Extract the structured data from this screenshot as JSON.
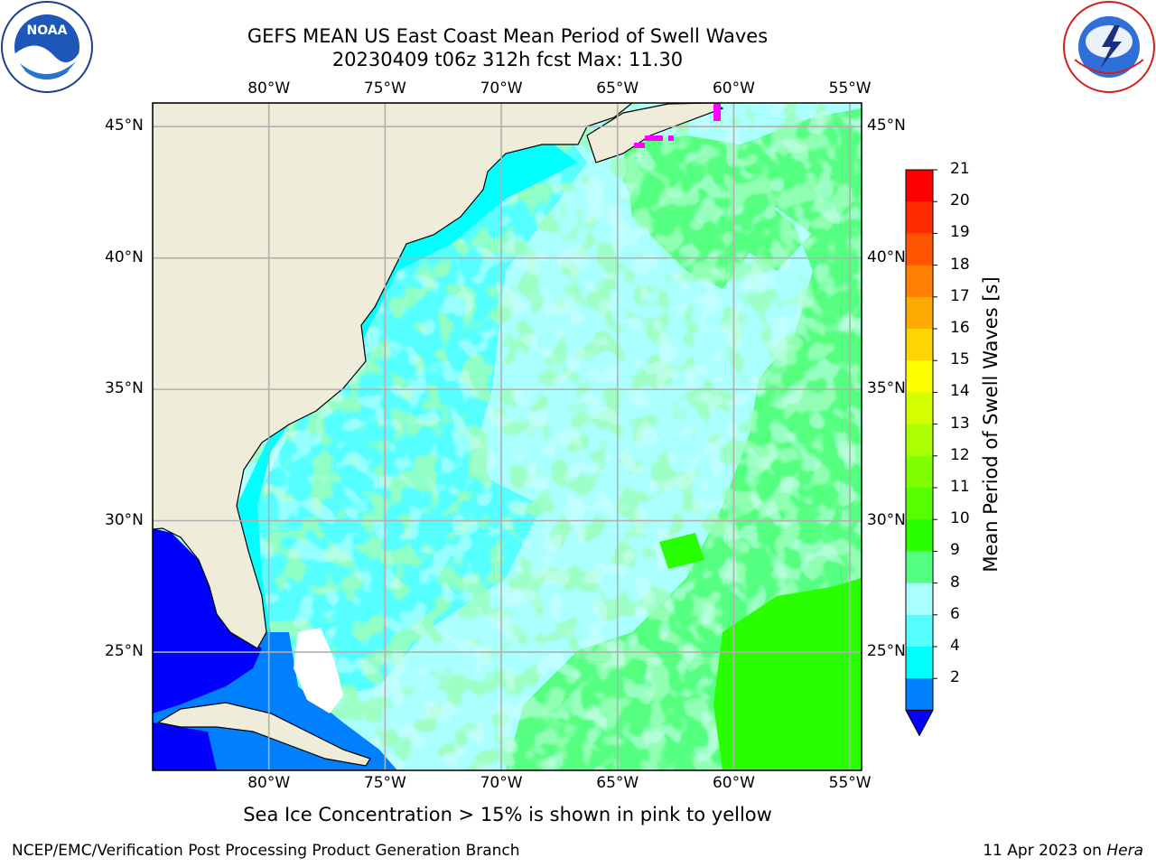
{
  "header": {
    "title": "GEFS MEAN US East Coast Mean Period of Swell Waves",
    "subtitle": "20230409 t06z 312h fcst   Max: 11.30"
  },
  "map": {
    "lon_labels": [
      "80°W",
      "75°W",
      "70°W",
      "65°W",
      "60°W",
      "55°W"
    ],
    "lat_labels": [
      "45°N",
      "40°N",
      "35°N",
      "30°N",
      "25°N"
    ],
    "lon_range": [
      -85,
      -54.5
    ],
    "lat_range": [
      20.5,
      45.9
    ],
    "land_color": "#efedd9",
    "grid_color": "#b0b0b0"
  },
  "colorbar": {
    "title": "Mean Period of Swell Waves [s]",
    "ticks": [
      "21",
      "20",
      "19",
      "18",
      "17",
      "16",
      "15",
      "14",
      "13",
      "12",
      "11",
      "10",
      "9",
      "8",
      "6",
      "4",
      "2"
    ],
    "colors": [
      "#ff0000",
      "#ff2a00",
      "#ff5500",
      "#ff7f00",
      "#ffaa00",
      "#ffd400",
      "#ffff00",
      "#d4ff00",
      "#aaff00",
      "#7fff00",
      "#55ff00",
      "#2aff00",
      "#55ff7f",
      "#aaffff",
      "#55ffff",
      "#00ffff",
      "#0080ff"
    ],
    "under_color": "#0000ff"
  },
  "note": "Sea Ice Concentration > 15% is shown in pink to yellow",
  "footer": {
    "left": "NCEP/EMC/Verification Post Processing Product Generation Branch",
    "right_date": "11 Apr 2023 on ",
    "right_host": "Hera"
  },
  "logos": {
    "noaa": "NOAA",
    "nws": "NATIONAL WEATHER SERVICE"
  }
}
